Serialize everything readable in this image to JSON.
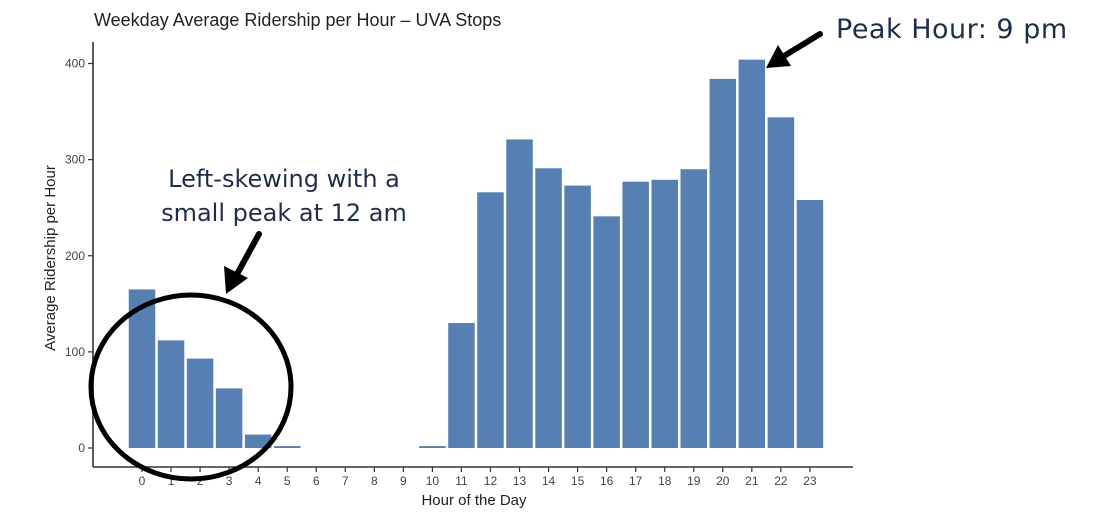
{
  "chart_data": {
    "type": "bar",
    "title": "Weekday Average Ridership per Hour – UVA Stops",
    "xlabel": "Hour of the Day",
    "ylabel": "Average Ridership per Hour",
    "categories": [
      "0",
      "1",
      "2",
      "3",
      "4",
      "5",
      "6",
      "7",
      "8",
      "9",
      "10",
      "11",
      "12",
      "13",
      "14",
      "15",
      "16",
      "17",
      "18",
      "19",
      "20",
      "21",
      "22",
      "23"
    ],
    "values": [
      165,
      112,
      93,
      62,
      14,
      2,
      0,
      0,
      0,
      0,
      2,
      130,
      266,
      321,
      291,
      273,
      241,
      277,
      279,
      290,
      384,
      404,
      344,
      258
    ],
    "ylim": [
      0,
      420
    ],
    "yticks": [
      0,
      100,
      200,
      300,
      400
    ],
    "bar_color": "#5680b3",
    "grid": false,
    "annotations": [
      {
        "text": "Peak Hour: 9 pm",
        "target_category": "21"
      },
      {
        "lines": [
          "Left-skewing with a",
          "small peak at 12 am"
        ],
        "target_category": "0"
      }
    ]
  }
}
